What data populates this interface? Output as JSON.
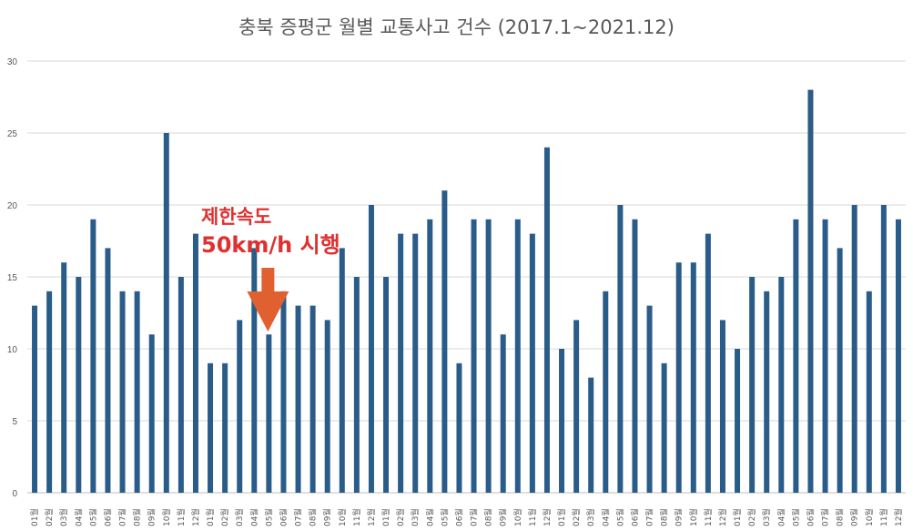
{
  "chart_data": {
    "type": "bar",
    "title": "충북 증평군 월별 교통사고 건수 (2017.1~2021.12)",
    "xlabel": "",
    "ylabel": "",
    "ylim": [
      0,
      30
    ],
    "yticks": [
      0,
      5,
      10,
      15,
      20,
      25,
      30
    ],
    "grid": true,
    "legend": "none",
    "bar_color": "#2a5c8a",
    "categories": [
      "01월",
      "02월",
      "03월",
      "04월",
      "05월",
      "06월",
      "07월",
      "08월",
      "09월",
      "10월",
      "11월",
      "12월",
      "01월",
      "02월",
      "03월",
      "04월",
      "05월",
      "06월",
      "07월",
      "08월",
      "09월",
      "10월",
      "11월",
      "12월",
      "01월",
      "02월",
      "03월",
      "04월",
      "05월",
      "06월",
      "07월",
      "08월",
      "09월",
      "10월",
      "11월",
      "12월",
      "01월",
      "02월",
      "03월",
      "04월",
      "05월",
      "06월",
      "07월",
      "08월",
      "09월",
      "10월",
      "11월",
      "12월",
      "01월",
      "02월",
      "03월",
      "04월",
      "05월",
      "06월",
      "07월",
      "08월",
      "09월",
      "10월",
      "11월",
      "12월"
    ],
    "values": [
      13,
      14,
      16,
      15,
      19,
      17,
      14,
      14,
      11,
      25,
      15,
      18,
      9,
      9,
      12,
      17,
      11,
      14,
      13,
      13,
      12,
      17,
      15,
      20,
      15,
      18,
      18,
      19,
      21,
      9,
      19,
      19,
      11,
      19,
      18,
      24,
      10,
      12,
      8,
      14,
      20,
      19,
      13,
      9,
      16,
      16,
      18,
      12,
      10,
      15,
      14,
      15,
      19,
      28,
      19,
      17,
      20,
      14,
      20,
      19
    ],
    "annotation": {
      "line1": "제한속도",
      "line2": "50km/h 시행",
      "color": "#e03030",
      "arrow_color": "#e06030",
      "points_to_index": 16
    }
  }
}
